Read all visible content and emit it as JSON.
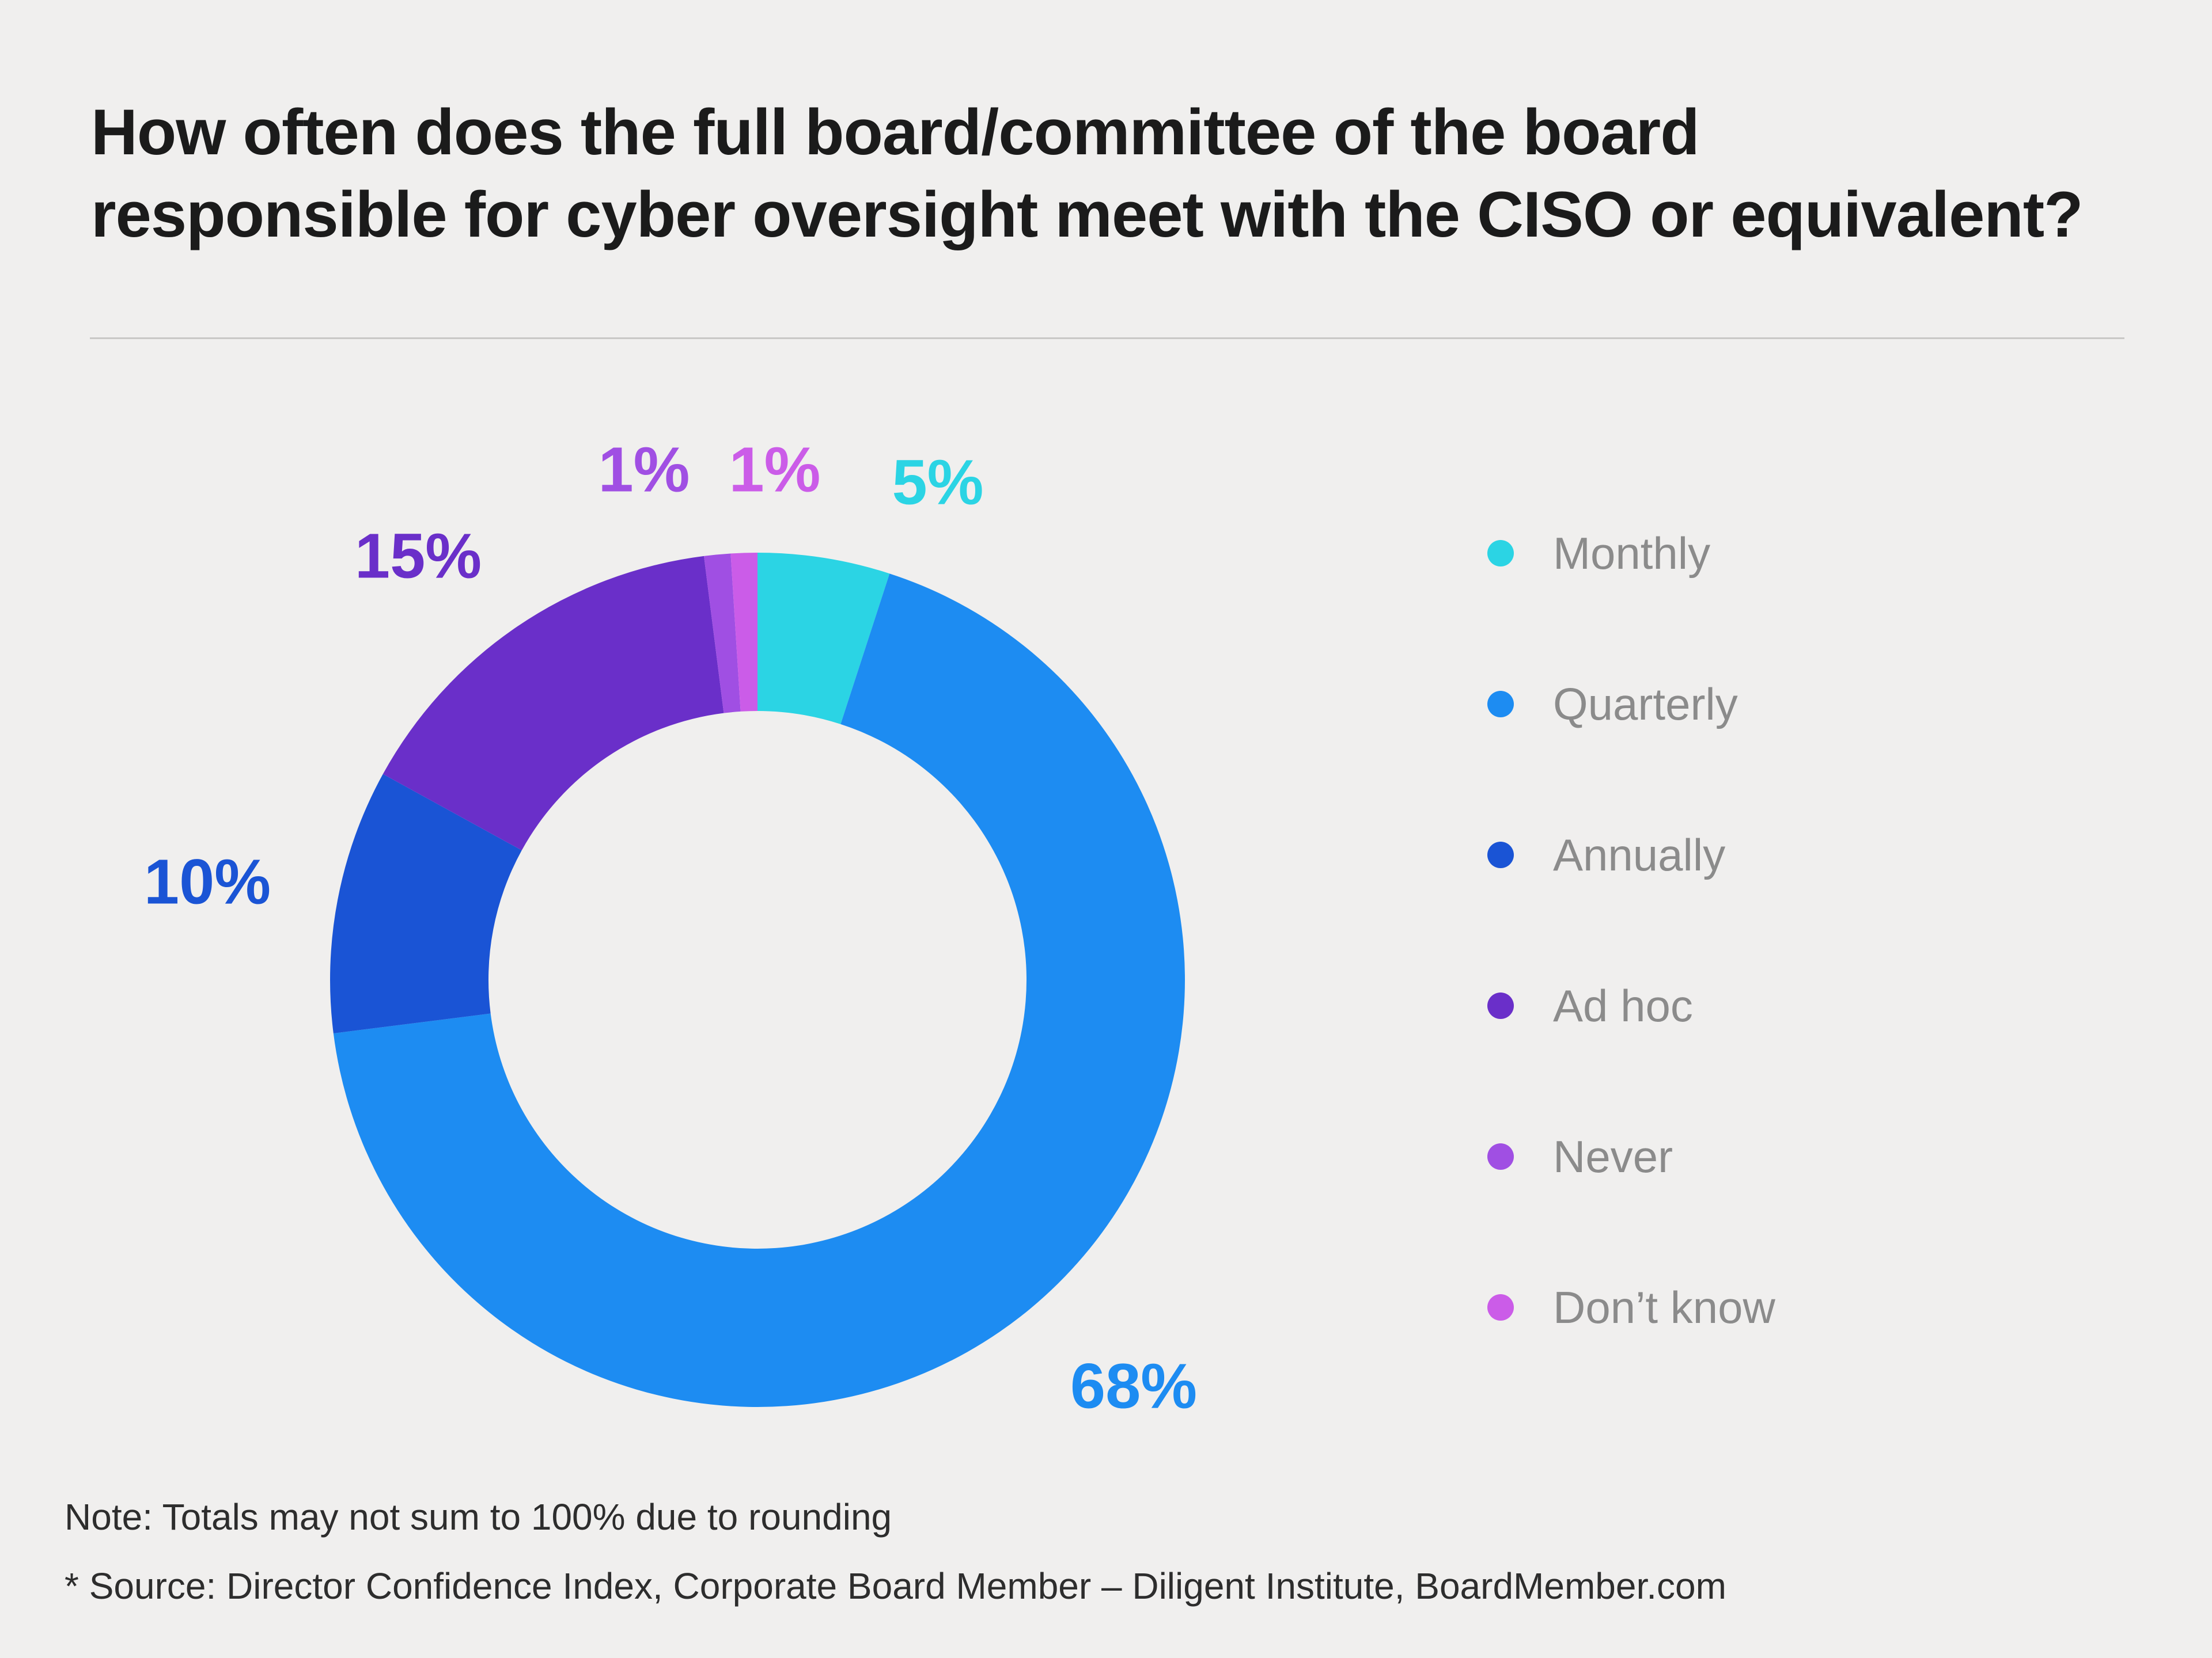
{
  "header": {
    "title_line1": "How often does the full board/committee of the board",
    "title_line2": "responsible for cyber oversight meet with the CISO or equivalent?"
  },
  "chart_data": {
    "type": "pie",
    "subtype": "donut",
    "title": "How often does the full board/committee of the board responsible for cyber oversight meet with the CISO or equivalent?",
    "categories": [
      "Monthly",
      "Quarterly",
      "Annually",
      "Ad hoc",
      "Never",
      "Don’t know"
    ],
    "values": [
      5,
      68,
      10,
      15,
      1,
      1
    ],
    "value_labels": [
      "5%",
      "68%",
      "10%",
      "15%",
      "1%",
      "1%"
    ],
    "colors": [
      "#2bd4e4",
      "#1d8cf2",
      "#1a54d5",
      "#6a2fc9",
      "#a04fe3",
      "#cb5ce8"
    ],
    "legend_position": "right",
    "start_angle_deg": 0,
    "direction": "clockwise",
    "donut_hole_ratio": 0.63
  },
  "footer": {
    "note": "Note: Totals may not sum to 100% due to rounding",
    "source": "* Source: Director Confidence Index, Corporate Board Member – Diligent Institute, BoardMember.com"
  }
}
